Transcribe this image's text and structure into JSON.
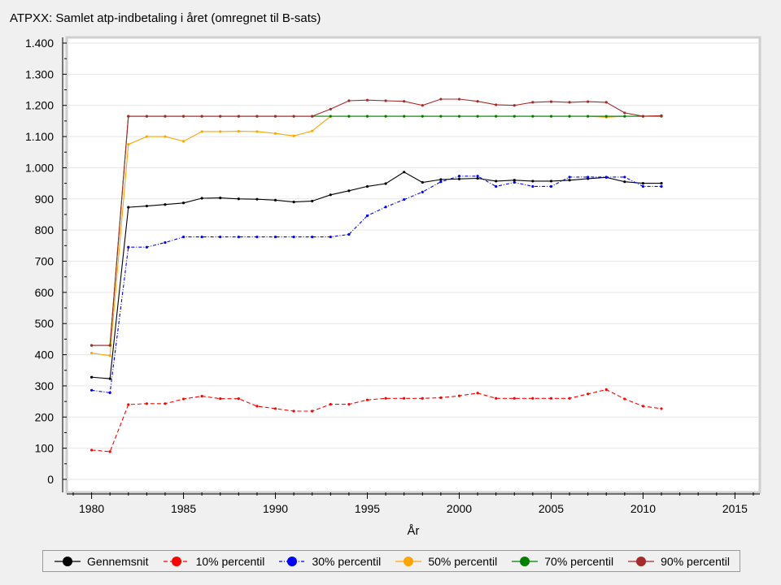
{
  "chart_data": {
    "type": "line",
    "title": "ATPXX: Samlet atp-indbetaling i året (omregnet til B-sats)",
    "xlabel": "År",
    "ylabel": "",
    "xlim": [
      1979,
      2016
    ],
    "ylim": [
      0,
      1400
    ],
    "xticks": [
      1980,
      1985,
      1990,
      1995,
      2000,
      2005,
      2010,
      2015
    ],
    "yticks": [
      0,
      100,
      200,
      300,
      400,
      500,
      600,
      700,
      800,
      900,
      1000,
      1100,
      1200,
      1300,
      1400
    ],
    "ytick_labels": [
      "0",
      "100",
      "200",
      "300",
      "400",
      "500",
      "600",
      "700",
      "800",
      "900",
      "1.000",
      "1.100",
      "1.200",
      "1.300",
      "1.400"
    ],
    "grid": true,
    "legend_position": "bottom",
    "x": [
      1980,
      1981,
      1982,
      1983,
      1984,
      1985,
      1986,
      1987,
      1988,
      1989,
      1990,
      1991,
      1992,
      1993,
      1994,
      1995,
      1996,
      1997,
      1998,
      1999,
      2000,
      2001,
      2002,
      2003,
      2004,
      2005,
      2006,
      2007,
      2008,
      2009,
      2010,
      2011
    ],
    "series": [
      {
        "name": "Gennemsnit",
        "color": "#000000",
        "dash": "",
        "values": [
          328,
          323,
          873,
          877,
          882,
          887,
          902,
          903,
          900,
          899,
          896,
          890,
          893,
          913,
          926,
          940,
          949,
          986,
          953,
          962,
          964,
          966,
          957,
          960,
          957,
          957,
          960,
          965,
          969,
          955,
          950,
          950
        ]
      },
      {
        "name": "10% percentil",
        "color": "#ff0000",
        "dash": "5,3",
        "values": [
          94,
          89,
          240,
          243,
          243,
          258,
          267,
          259,
          259,
          235,
          227,
          219,
          219,
          241,
          241,
          255,
          260,
          260,
          260,
          262,
          268,
          277,
          260,
          260,
          260,
          260,
          260,
          274,
          288,
          258,
          235,
          227
        ]
      },
      {
        "name": "30% percentil",
        "color": "#0000ff",
        "dash": "4,2,1,2",
        "values": [
          286,
          278,
          745,
          745,
          760,
          778,
          778,
          778,
          778,
          778,
          778,
          778,
          778,
          778,
          786,
          846,
          874,
          898,
          922,
          955,
          973,
          973,
          940,
          953,
          940,
          940,
          970,
          970,
          970,
          970,
          940,
          940
        ]
      },
      {
        "name": "50% percentil",
        "color": "#ffa500",
        "dash": "",
        "values": [
          405,
          397,
          1075,
          1100,
          1100,
          1085,
          1116,
          1116,
          1117,
          1116,
          1110,
          1102,
          1118,
          1165,
          1165,
          1165,
          1165,
          1165,
          1165,
          1165,
          1165,
          1165,
          1165,
          1165,
          1165,
          1165,
          1165,
          1165,
          1162,
          1165,
          1165,
          1167
        ]
      },
      {
        "name": "70% percentil",
        "color": "#008000",
        "dash": "",
        "values": [
          430,
          430,
          1165,
          1165,
          1165,
          1165,
          1165,
          1165,
          1165,
          1165,
          1165,
          1165,
          1165,
          1165,
          1165,
          1165,
          1165,
          1165,
          1165,
          1165,
          1165,
          1165,
          1165,
          1165,
          1165,
          1165,
          1165,
          1165,
          1165,
          1165,
          1165,
          1165
        ]
      },
      {
        "name": "90% percentil",
        "color": "#a52a2a",
        "dash": "",
        "values": [
          430,
          430,
          1165,
          1165,
          1165,
          1165,
          1165,
          1165,
          1165,
          1165,
          1165,
          1165,
          1165,
          1188,
          1215,
          1217,
          1215,
          1213,
          1200,
          1220,
          1220,
          1213,
          1202,
          1200,
          1210,
          1212,
          1210,
          1212,
          1210,
          1176,
          1165,
          1167
        ]
      }
    ]
  }
}
